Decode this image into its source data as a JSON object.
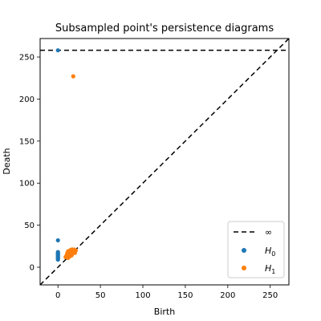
{
  "chart_data": {
    "type": "scatter",
    "title": "Subsampled point's persistence diagrams",
    "xlabel": "Birth",
    "ylabel": "Death",
    "xlim": [
      -21,
      272
    ],
    "ylim": [
      -21,
      272
    ],
    "xticks": [
      0,
      50,
      100,
      150,
      200,
      250
    ],
    "yticks": [
      0,
      50,
      100,
      150,
      200,
      250
    ],
    "grid": false,
    "legend_position": "bottom-right",
    "infinity_line": {
      "label": "∞",
      "value": 258,
      "style": "dashed",
      "color": "#000000"
    },
    "diagonal": {
      "style": "dashed",
      "color": "#000000"
    },
    "series": [
      {
        "name": "H0",
        "name_base": "H",
        "name_sub": "0",
        "color": "#1f77b4",
        "points": [
          [
            0,
            258
          ],
          [
            0,
            32
          ],
          [
            0,
            18
          ],
          [
            0,
            17
          ],
          [
            0,
            16
          ],
          [
            0,
            15
          ],
          [
            0,
            14
          ],
          [
            0,
            13
          ],
          [
            0,
            12
          ],
          [
            0,
            11
          ],
          [
            0,
            10
          ],
          [
            0,
            9
          ]
        ]
      },
      {
        "name": "H1",
        "name_base": "H",
        "name_sub": "1",
        "color": "#ff7f0e",
        "points": [
          [
            18,
            227
          ],
          [
            9,
            12
          ],
          [
            10,
            14
          ],
          [
            11,
            13
          ],
          [
            12,
            16
          ],
          [
            12,
            11
          ],
          [
            13,
            15
          ],
          [
            13,
            18
          ],
          [
            14,
            13
          ],
          [
            14,
            17
          ],
          [
            15,
            15
          ],
          [
            15,
            20
          ],
          [
            16,
            14
          ],
          [
            16,
            18
          ],
          [
            17,
            16
          ],
          [
            17,
            21
          ],
          [
            18,
            17
          ],
          [
            18,
            19
          ],
          [
            19,
            18
          ],
          [
            19,
            21
          ],
          [
            20,
            19
          ],
          [
            20,
            17
          ],
          [
            21,
            20
          ],
          [
            11,
            17
          ],
          [
            14,
            20
          ],
          [
            16,
            21
          ],
          [
            12,
            19
          ],
          [
            10,
            12
          ]
        ]
      }
    ]
  }
}
